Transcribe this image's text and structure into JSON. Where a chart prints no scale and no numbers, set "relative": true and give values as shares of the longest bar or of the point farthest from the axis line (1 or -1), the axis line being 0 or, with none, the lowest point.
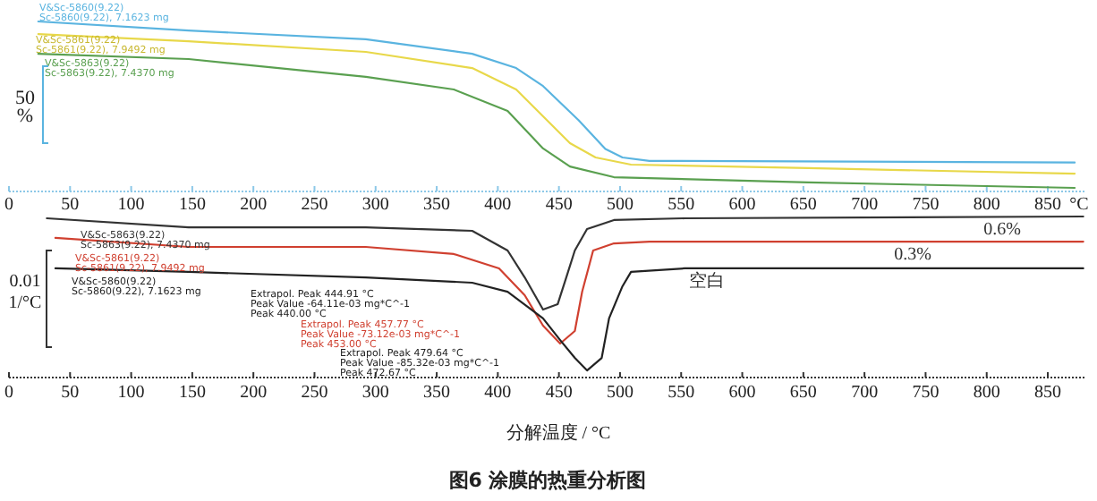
{
  "chart_data": [
    {
      "type": "line",
      "relative": true,
      "xlabel": "°C",
      "xlim": [
        0,
        880
      ],
      "xticks": [
        {
          "value": 0,
          "label": "0"
        },
        50,
        100,
        150,
        200,
        250,
        300,
        350,
        400,
        450,
        500,
        550,
        600,
        650,
        700,
        750,
        800,
        850
      ],
      "grid": false,
      "legend": false,
      "line_style": "solid",
      "marker": "none",
      "series": [
        {
          "name": "V&Sc-5860(9.22)\nSc-5860(9.22), 7.1623 mg",
          "color": "#5ab4e0",
          "x": [
            24,
            147,
            292,
            379,
            415,
            437,
            466,
            488,
            502,
            524,
            872
          ],
          "values": [
            1.0,
            0.947,
            0.895,
            0.81,
            0.726,
            0.62,
            0.42,
            0.25,
            0.2,
            0.18,
            0.17
          ]
        },
        {
          "name": "V&Sc-5861(9.22)\nSc-5861(9.22), 7.9492 mg",
          "color": "#e8d84a",
          "x": [
            24,
            147,
            292,
            379,
            415,
            437,
            459,
            480,
            509,
            654,
            872
          ],
          "values": [
            0.926,
            0.884,
            0.821,
            0.726,
            0.6,
            0.442,
            0.284,
            0.2,
            0.158,
            0.137,
            0.105
          ]
        },
        {
          "name": "V&Sc-5863(9.22)\nSc-5863(9.22), 7.4370 mg",
          "color": "#5aa050",
          "x": [
            24,
            147,
            292,
            364,
            408,
            437,
            459,
            495,
            654,
            872
          ],
          "values": [
            0.81,
            0.779,
            0.674,
            0.6,
            0.474,
            0.253,
            0.147,
            0.084,
            0.053,
            0.021
          ]
        }
      ],
      "annotations": [
        "50\n%"
      ]
    },
    {
      "type": "line",
      "relative": true,
      "xlabel": "分解温度 / °C",
      "xlim": [
        0,
        880
      ],
      "xticks": [
        {
          "value": 0,
          "label": "0"
        },
        50,
        100,
        150,
        200,
        250,
        300,
        350,
        400,
        450,
        500,
        550,
        600,
        650,
        700,
        750,
        800,
        850
      ],
      "grid": false,
      "legend": false,
      "line_style": "solid",
      "marker": "none",
      "series": [
        {
          "name": "0.6%",
          "color": "#333333",
          "x": [
            31,
            147,
            292,
            379,
            408,
            422,
            437,
            449,
            456,
            463,
            473,
            495,
            553,
            879
          ],
          "values": [
            0.989,
            0.933,
            0.933,
            0.911,
            0.789,
            0.622,
            0.422,
            0.456,
            0.622,
            0.789,
            0.922,
            0.978,
            0.989,
            1.0
          ]
        },
        {
          "name": "0.3%",
          "color": "#d04030",
          "x": [
            38,
            147,
            292,
            364,
            401,
            422,
            437,
            451,
            463,
            469,
            478,
            495,
            524,
            879
          ],
          "values": [
            0.867,
            0.811,
            0.811,
            0.767,
            0.678,
            0.511,
            0.322,
            0.211,
            0.289,
            0.533,
            0.789,
            0.833,
            0.844,
            0.844
          ]
        },
        {
          "name": "空白",
          "color": "#222222",
          "x": [
            38,
            147,
            292,
            379,
            408,
            437,
            451,
            463,
            473,
            485,
            491,
            502,
            509,
            553,
            879
          ],
          "values": [
            0.678,
            0.656,
            0.622,
            0.589,
            0.533,
            0.367,
            0.233,
            0.122,
            0.044,
            0.122,
            0.367,
            0.567,
            0.656,
            0.678,
            0.678
          ]
        }
      ],
      "annotations": [
        "V&Sc-5863(9.22)\nSc-5863(9.22), 7.4370 mg",
        "V&Sc-5861(9.22)\nSc-5861(9.22), 7.9492 mg",
        "V&Sc-5860(9.22)\nSc-5860(9.22), 7.1623 mg",
        "Extrapol. Peak    444.91 °C\nPeak Value    -64.11e-03 mg*C^-1\nPeak    440.00 °C",
        "Extrapol. Peak    457.77 °C\nPeak Value    -73.12e-03 mg*C^-1\nPeak    453.00 °C",
        "Extrapol. Peak    479.64 °C\nPeak Value    -85.32e-03 mg*C^-1\nPeak    472.67 °C",
        "0.01\n1/°C",
        "图6  涂膜的热重分析图"
      ]
    }
  ]
}
